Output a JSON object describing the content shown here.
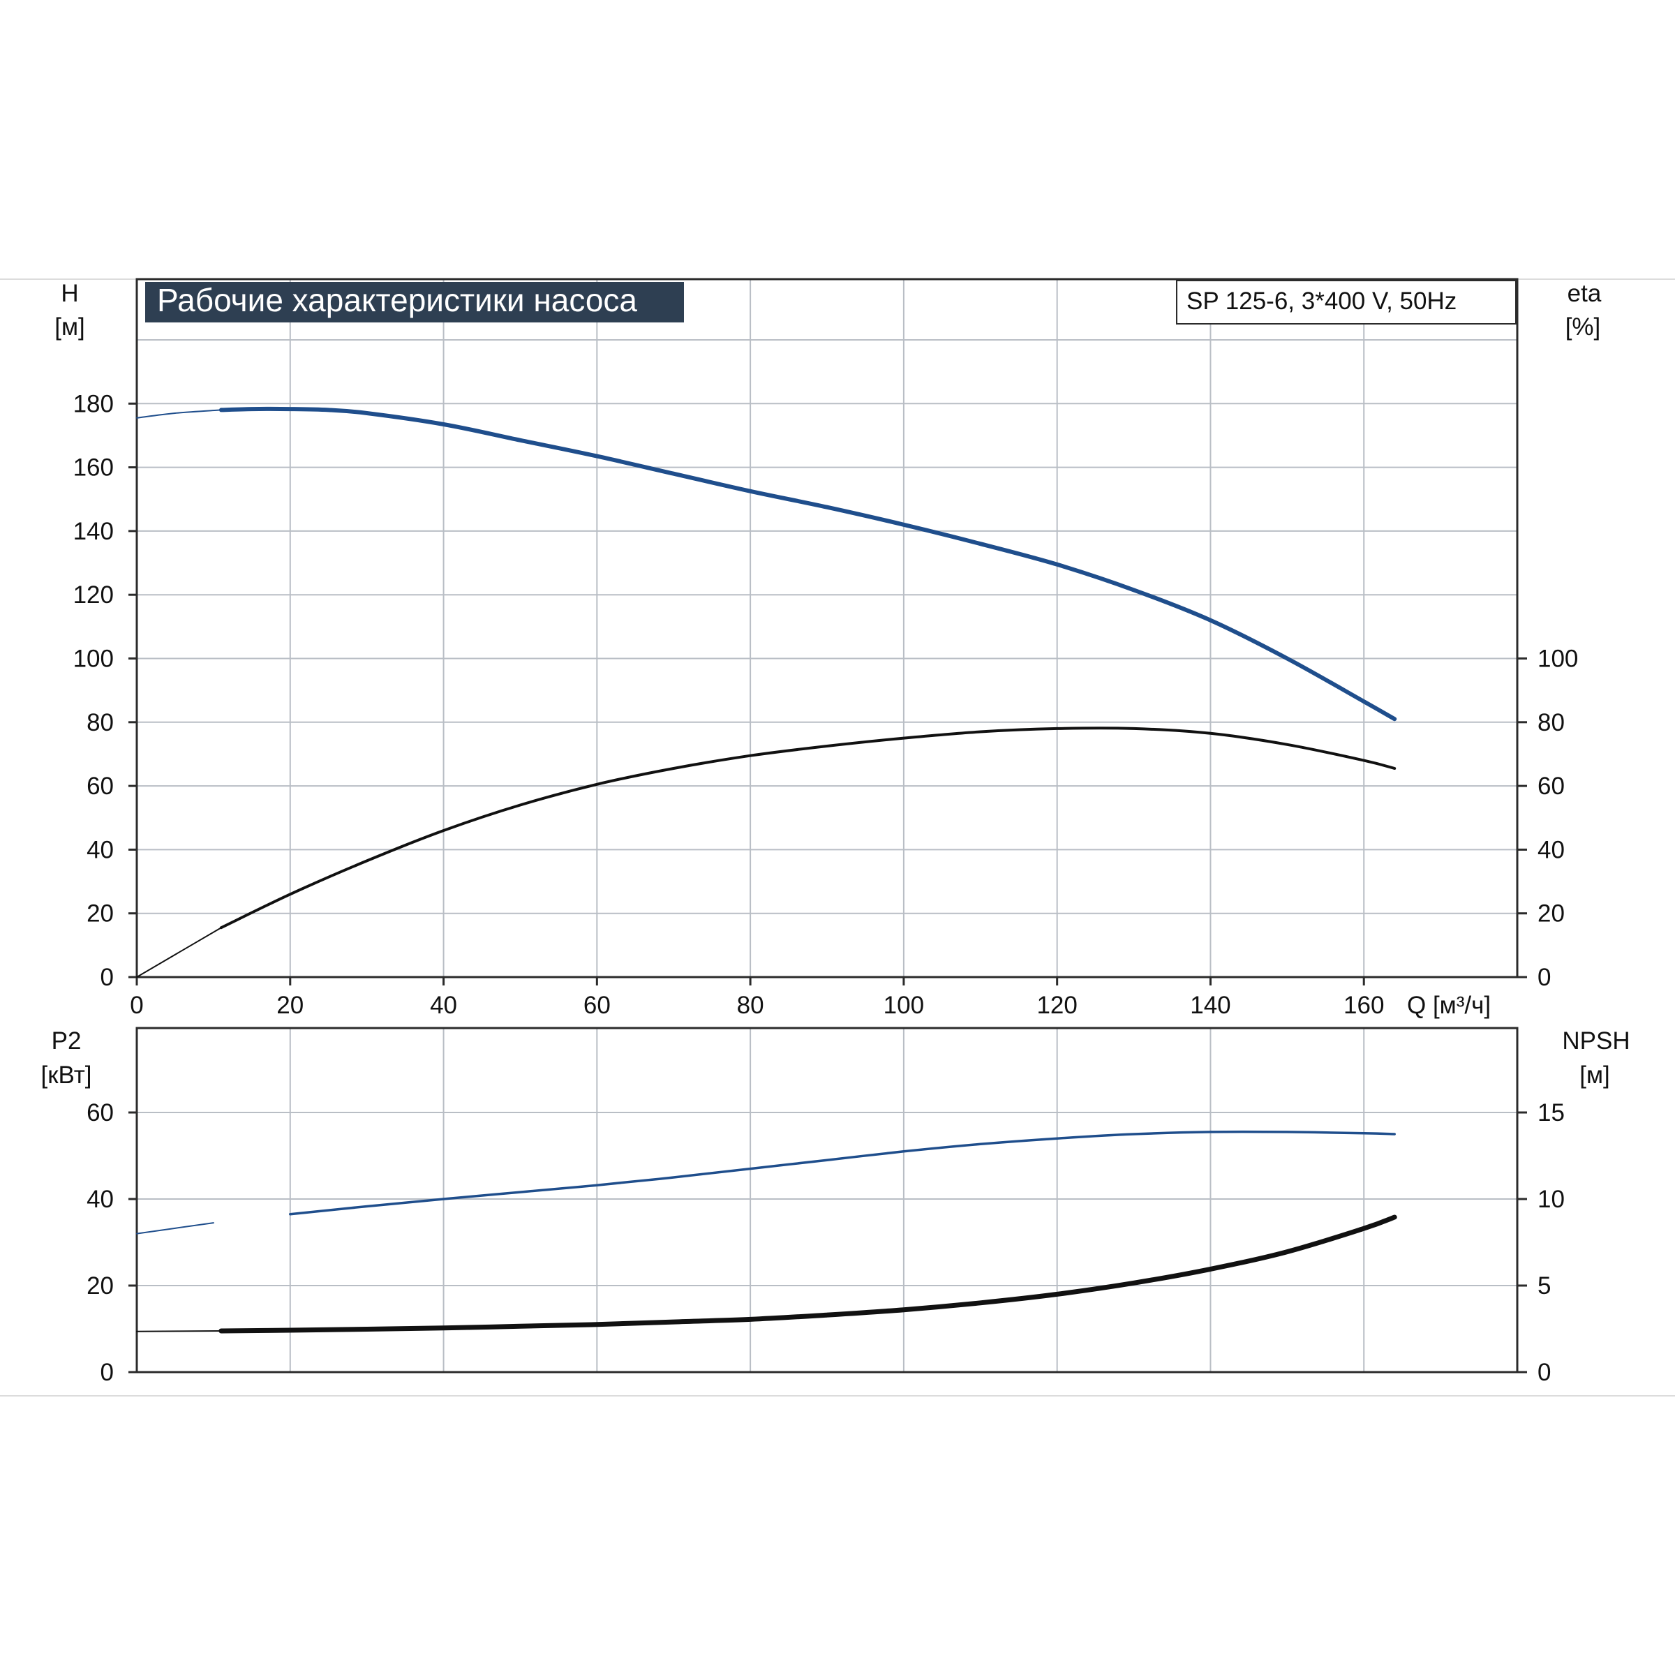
{
  "title": "Рабочие характеристики насоса",
  "model": "SP 125-6, 3*400 V, 50Hz",
  "colors": {
    "blue": "#1f4e8c",
    "black": "#111111",
    "grid": "#b9bec5",
    "frame": "#2b2b2b",
    "title_bg": "#2e3f52"
  },
  "chart_data": [
    {
      "type": "line",
      "panel": "top",
      "xlabel": "Q [м³/ч]",
      "xlim": [
        0,
        180
      ],
      "x_ticks": [
        "0",
        "20",
        "40",
        "60",
        "80",
        "100",
        "120",
        "140",
        "160"
      ],
      "y_left": {
        "name": "H",
        "unit": "[м]",
        "lim": [
          0,
          200
        ],
        "ticks": [
          "0",
          "20",
          "40",
          "60",
          "80",
          "100",
          "120",
          "140",
          "160",
          "180"
        ]
      },
      "y_right": {
        "name": "eta",
        "unit": "[%]",
        "lim": [
          0,
          200
        ],
        "ticks": [
          "0",
          "20",
          "40",
          "60",
          "80",
          "100"
        ]
      },
      "grid": true,
      "series": [
        {
          "axis": "left",
          "color": "#1f4e8c",
          "points": [
            [
              0,
              175.5
            ],
            [
              5,
              177
            ],
            [
              11,
              178
            ],
            [
              15,
              178.3
            ],
            [
              20,
              178.3
            ],
            [
              25,
              178
            ],
            [
              30,
              177
            ],
            [
              40,
              173.5
            ],
            [
              50,
              168.5
            ],
            [
              60,
              163.5
            ],
            [
              70,
              158
            ],
            [
              80,
              152.5
            ],
            [
              90,
              147.5
            ],
            [
              100,
              142
            ],
            [
              110,
              136
            ],
            [
              120,
              129.5
            ],
            [
              130,
              121.5
            ],
            [
              140,
              112
            ],
            [
              150,
              100
            ],
            [
              160,
              86.5
            ],
            [
              164,
              81
            ]
          ]
        },
        {
          "axis": "right",
          "color": "#111111",
          "points": [
            [
              0,
              0
            ],
            [
              11,
              15.5
            ],
            [
              20,
              26
            ],
            [
              30,
              36.5
            ],
            [
              40,
              46
            ],
            [
              50,
              54
            ],
            [
              60,
              60.5
            ],
            [
              70,
              65.5
            ],
            [
              80,
              69.5
            ],
            [
              90,
              72.5
            ],
            [
              100,
              75
            ],
            [
              110,
              77
            ],
            [
              120,
              78
            ],
            [
              130,
              78
            ],
            [
              140,
              76.5
            ],
            [
              150,
              73
            ],
            [
              160,
              68
            ],
            [
              164,
              65.5
            ]
          ]
        }
      ]
    },
    {
      "type": "line",
      "panel": "bottom",
      "xlim": [
        0,
        180
      ],
      "y_left": {
        "name": "P2",
        "unit": "[кВт]",
        "lim": [
          0,
          80
        ],
        "ticks": [
          "0",
          "20",
          "40",
          "60"
        ]
      },
      "y_right": {
        "name": "NPSH",
        "unit": "[м]",
        "lim": [
          0,
          20
        ],
        "ticks": [
          "0",
          "5",
          "10",
          "15"
        ]
      },
      "grid": true,
      "series": [
        {
          "axis": "left",
          "color": "#1f4e8c",
          "points": [
            [
              0,
              32
            ],
            [
              10,
              34.5
            ],
            [
              20,
              36.5
            ],
            [
              30,
              38.3
            ],
            [
              40,
              40
            ],
            [
              50,
              41.6
            ],
            [
              60,
              43.2
            ],
            [
              70,
              45
            ],
            [
              80,
              47
            ],
            [
              90,
              49
            ],
            [
              100,
              51
            ],
            [
              110,
              52.7
            ],
            [
              120,
              54
            ],
            [
              130,
              55
            ],
            [
              140,
              55.5
            ],
            [
              150,
              55.5
            ],
            [
              160,
              55.2
            ],
            [
              164,
              55
            ]
          ]
        },
        {
          "axis": "right",
          "color": "#111111",
          "points": [
            [
              0,
              2.35
            ],
            [
              11,
              2.38
            ],
            [
              20,
              2.42
            ],
            [
              30,
              2.48
            ],
            [
              40,
              2.55
            ],
            [
              50,
              2.65
            ],
            [
              60,
              2.75
            ],
            [
              70,
              2.9
            ],
            [
              80,
              3.05
            ],
            [
              90,
              3.3
            ],
            [
              100,
              3.6
            ],
            [
              110,
              4.0
            ],
            [
              120,
              4.5
            ],
            [
              130,
              5.15
            ],
            [
              140,
              5.95
            ],
            [
              150,
              6.95
            ],
            [
              160,
              8.3
            ],
            [
              164,
              8.95
            ]
          ]
        }
      ]
    }
  ]
}
